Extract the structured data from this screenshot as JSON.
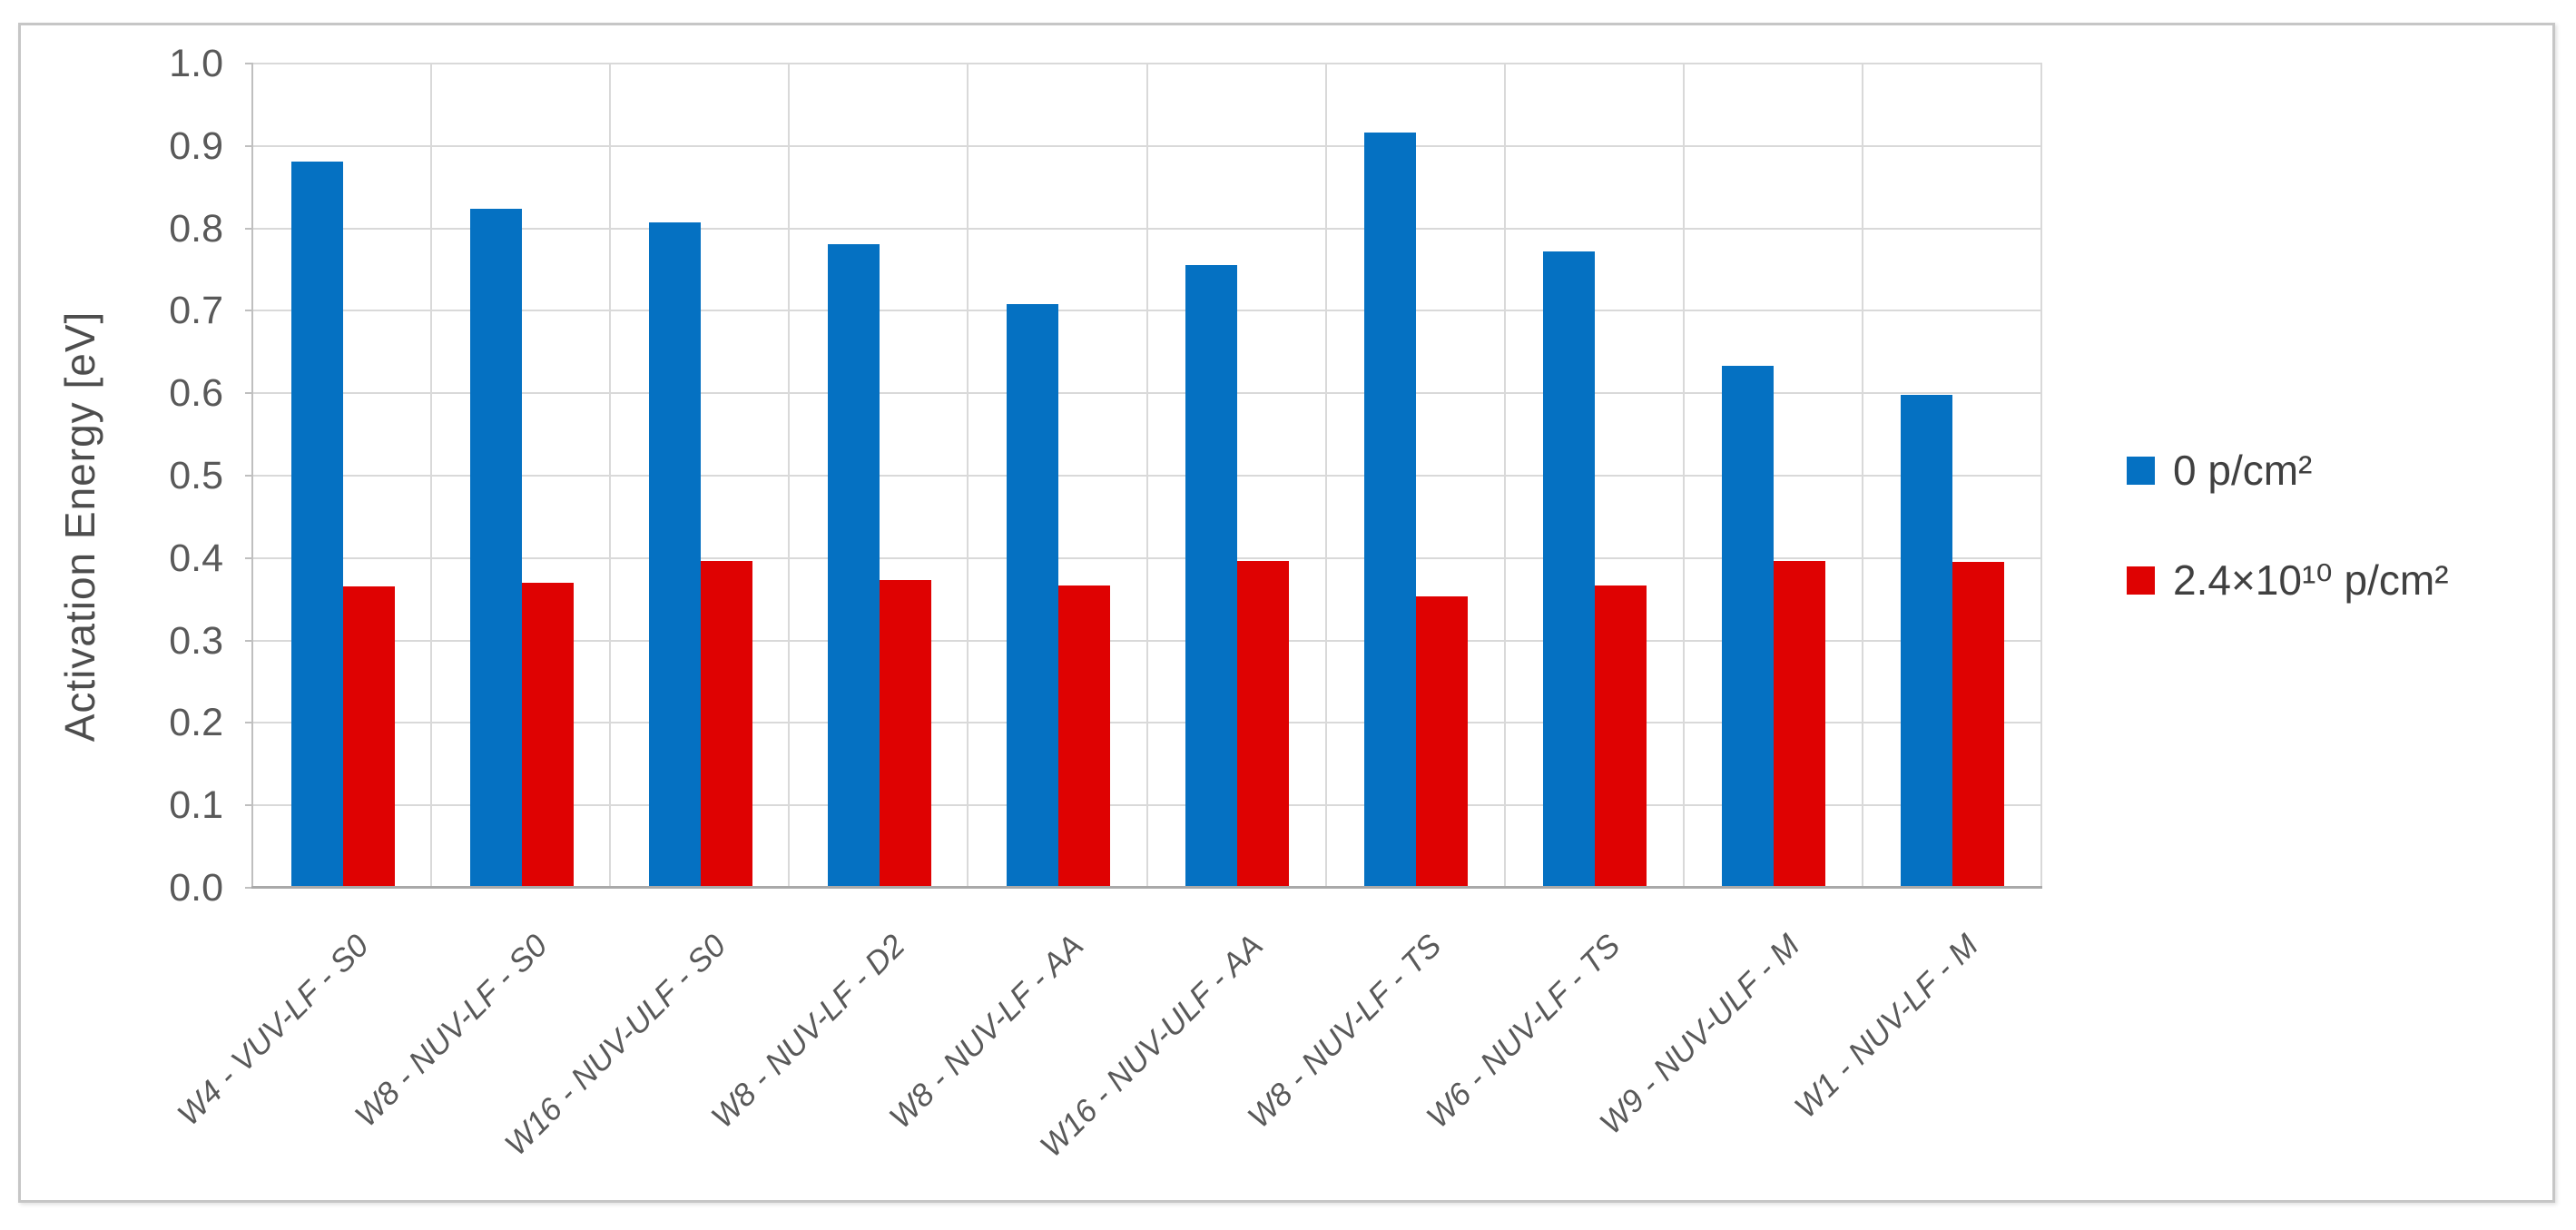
{
  "chart_data": {
    "type": "bar",
    "title": "",
    "xlabel": "",
    "ylabel": "Activation Energy [eV]",
    "ylim": [
      0,
      1
    ],
    "ytick_step": 0.1,
    "y_ticks": [
      "0.0",
      "0.1",
      "0.2",
      "0.3",
      "0.4",
      "0.5",
      "0.6",
      "0.7",
      "0.8",
      "0.9",
      "1.0"
    ],
    "grid": true,
    "legend_position": "right",
    "categories": [
      "W4 - VUV-LF - S0",
      "W8 - NUV-LF - S0",
      "W16 - NUV-ULF - S0",
      "W8 - NUV-LF - D2",
      "W8 - NUV-LF - AA",
      "W16 - NUV-ULF - AA",
      "W8 - NUV-LF - TS",
      "W6 - NUV-LF - TS",
      "W9 - NUV-ULF - M",
      "W1 - NUV-LF - M"
    ],
    "series": [
      {
        "name": "0 p/cm²",
        "color": "#0571c2",
        "values": [
          0.881,
          0.824,
          0.807,
          0.781,
          0.708,
          0.756,
          0.916,
          0.772,
          0.633,
          0.598
        ]
      },
      {
        "name": "2.4×10¹⁰ p/cm²",
        "color": "#df0202",
        "values": [
          0.366,
          0.37,
          0.397,
          0.373,
          0.367,
          0.397,
          0.353,
          0.367,
          0.396,
          0.395
        ]
      }
    ]
  },
  "colors": {
    "grid": "#d9d9d9",
    "axis_line": "#a9a9a9",
    "minor_axis": "#bfbfbf",
    "tick_text": "#595959",
    "frame_border": "#c6c6c6",
    "background": "#ffffff"
  }
}
